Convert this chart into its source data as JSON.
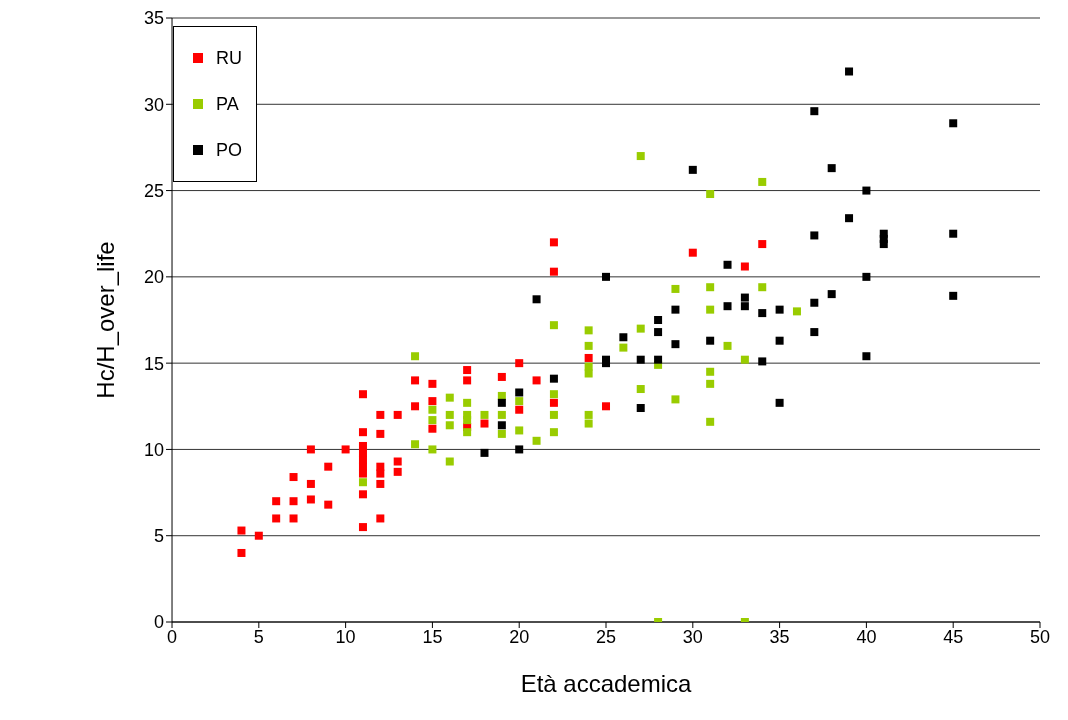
{
  "chart_data": {
    "type": "scatter",
    "xlabel": "Età accademica",
    "ylabel": "Hc/H_over_life",
    "xlim": [
      0,
      50
    ],
    "xticks": [
      0,
      5,
      10,
      15,
      20,
      25,
      30,
      35,
      40,
      45,
      50
    ],
    "ylim": [
      0,
      35
    ],
    "yticks": [
      0,
      5,
      10,
      15,
      20,
      25,
      30,
      35
    ],
    "grid": "y",
    "legend": "top left",
    "marker": "square",
    "series": [
      {
        "name": "RU",
        "color": "#ff0000",
        "x": [
          4,
          4,
          5,
          6,
          6,
          7,
          7,
          7,
          8,
          8,
          8,
          9,
          9,
          10,
          11,
          11,
          11,
          11,
          11,
          11,
          11,
          11,
          11,
          12,
          12,
          12,
          12,
          12,
          12,
          13,
          13,
          13,
          14,
          14,
          15,
          15,
          15,
          17,
          17,
          17,
          18,
          19,
          20,
          20,
          21,
          22,
          22,
          22,
          24,
          25,
          30,
          33,
          34
        ],
        "values": [
          5.3,
          4,
          5,
          7,
          6,
          8.4,
          7,
          6,
          10,
          8,
          7.1,
          9,
          6.8,
          10,
          13.2,
          11,
          10.2,
          9.8,
          9.4,
          9,
          8.6,
          7.4,
          5.5,
          12,
          10.9,
          9,
          8.6,
          8,
          6,
          12,
          9.3,
          8.7,
          14,
          12.5,
          13.8,
          12.8,
          11.2,
          14.6,
          14,
          11.3,
          11.5,
          14.2,
          15,
          12.3,
          14,
          22,
          20.3,
          12.7,
          15.3,
          12.5,
          21.4,
          20.6,
          21.9
        ]
      },
      {
        "name": "PA",
        "color": "#99cc00",
        "x": [
          11,
          14,
          14,
          15,
          15,
          15,
          16,
          16,
          16,
          16,
          17,
          17,
          17,
          17,
          18,
          19,
          19,
          19,
          20,
          20,
          21,
          22,
          22,
          22,
          22,
          24,
          24,
          24,
          24,
          24,
          24,
          26,
          27,
          27,
          27,
          28,
          28,
          29,
          29,
          31,
          31,
          31,
          31,
          31,
          31,
          32,
          33,
          33,
          34,
          34,
          36
        ],
        "values": [
          8.1,
          15.4,
          10.3,
          12.3,
          11.7,
          10,
          13,
          12,
          11.4,
          9.3,
          12.7,
          12,
          11.7,
          11,
          12,
          13.1,
          12,
          10.9,
          12.8,
          11.1,
          10.5,
          17.2,
          13.2,
          12,
          11,
          16.9,
          16,
          14.8,
          14.4,
          12,
          11.5,
          15.9,
          27,
          17,
          13.5,
          14.9,
          0,
          19.3,
          12.9,
          24.8,
          19.4,
          18.1,
          14.5,
          13.8,
          11.6,
          16,
          15.2,
          0,
          25.5,
          19.4,
          18
        ]
      },
      {
        "name": "PO",
        "color": "#000000",
        "x": [
          18,
          19,
          19,
          20,
          20,
          21,
          22,
          25,
          25,
          25,
          26,
          27,
          27,
          28,
          28,
          28,
          29,
          29,
          30,
          31,
          32,
          32,
          33,
          33,
          34,
          34,
          35,
          35,
          35,
          37,
          37,
          37,
          37,
          38,
          38,
          39,
          39,
          40,
          40,
          40,
          41,
          41,
          41,
          45,
          45,
          45
        ],
        "values": [
          9.8,
          12.7,
          11.4,
          13.3,
          10,
          18.7,
          14.1,
          20,
          15.2,
          15,
          16.5,
          15.2,
          12.4,
          17.5,
          16.8,
          15.2,
          18.1,
          16.1,
          26.2,
          16.3,
          20.7,
          18.3,
          18.8,
          18.3,
          17.9,
          15.1,
          18.1,
          16.3,
          12.7,
          29.6,
          22.4,
          18.5,
          16.8,
          26.3,
          19,
          31.9,
          23.4,
          25,
          20,
          15.4,
          22.5,
          22.2,
          21.9,
          28.9,
          22.5,
          18.9
        ]
      }
    ]
  }
}
